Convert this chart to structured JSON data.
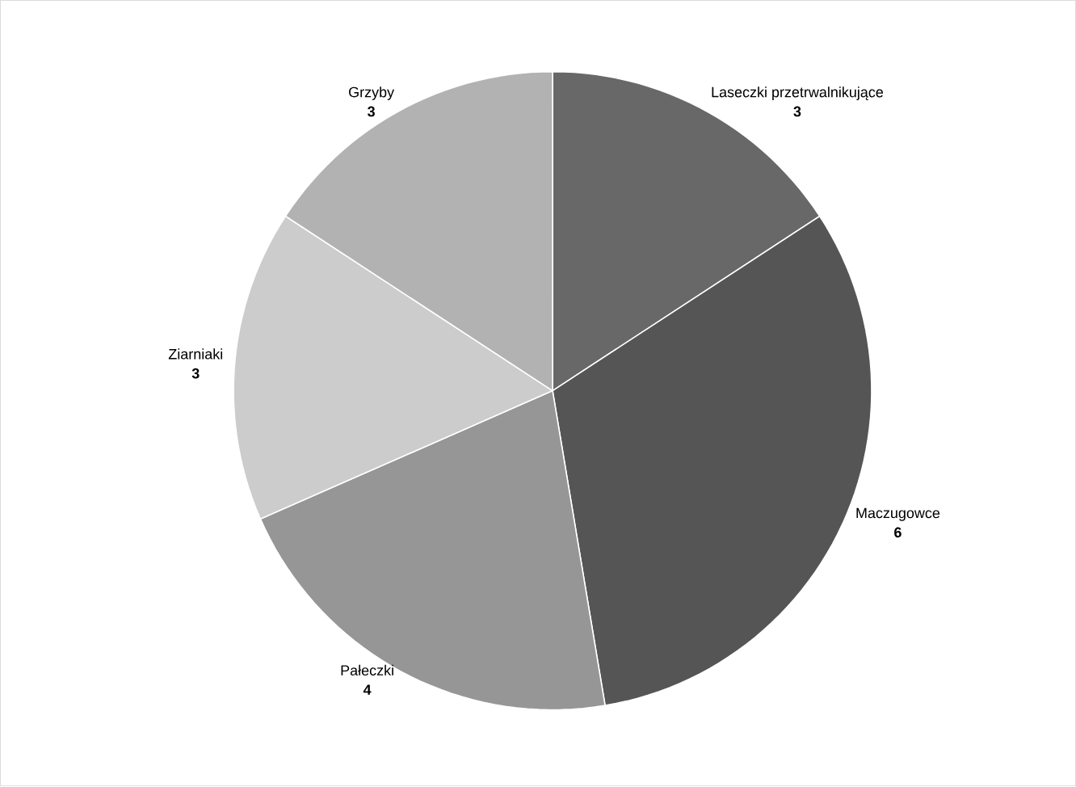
{
  "chart_data": {
    "type": "pie",
    "categories": [
      "Laseczki przetrwalnikujące",
      "Maczugowce",
      "Pałeczki",
      "Ziarniaki",
      "Grzyby"
    ],
    "values": [
      3,
      6,
      4,
      3,
      3
    ],
    "colors": [
      "#686868",
      "#555555",
      "#969696",
      "#cccccc",
      "#b2b2b2"
    ],
    "data_labels": true
  }
}
